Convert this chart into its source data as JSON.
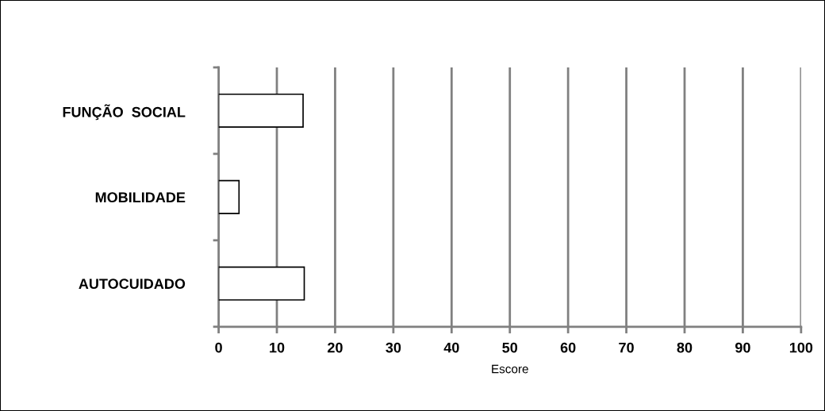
{
  "chart_data": {
    "type": "bar",
    "orientation": "horizontal",
    "xlabel": "Escore",
    "categories": [
      "FUNÇÃO  SOCIAL",
      "MOBILIDADE",
      "AUTOCUIDADO"
    ],
    "values": [
      14.5,
      3.5,
      14.7
    ],
    "color": "#ffffff",
    "xlim": [
      0,
      100
    ],
    "xticks": [
      0,
      10,
      20,
      30,
      40,
      50,
      60,
      70,
      80,
      90,
      100
    ],
    "grid": "x"
  }
}
